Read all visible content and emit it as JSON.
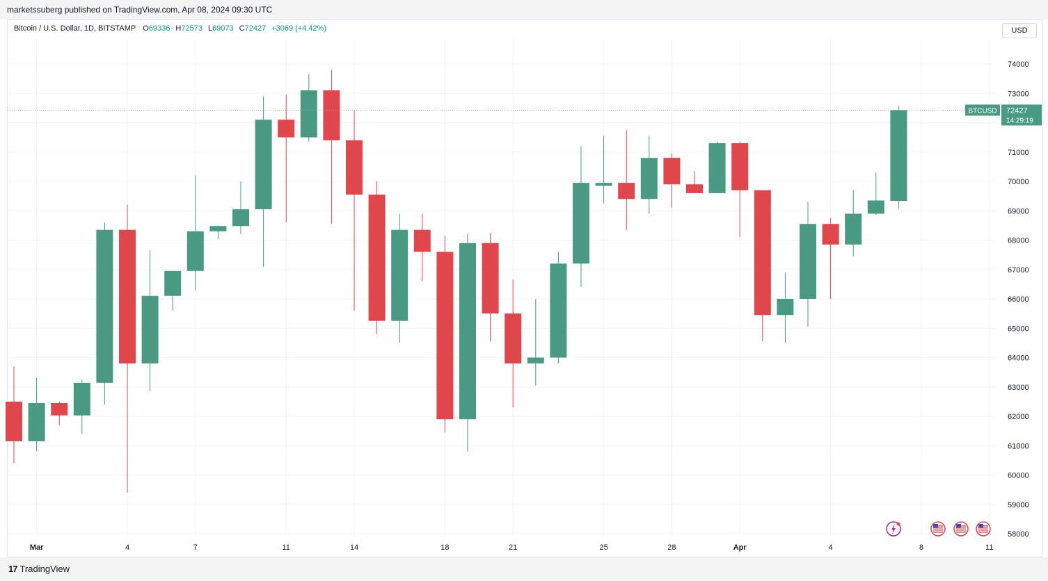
{
  "header": {
    "published_text": "marketssuberg published on TradingView.com, Apr 08, 2024 09:30 UTC"
  },
  "legend": {
    "symbol": "Bitcoin / U.S. Dollar, 1D, BITSTAMP",
    "o_label": "O",
    "o_value": "69336",
    "h_label": "H",
    "h_value": "72573",
    "l_label": "L",
    "l_value": "69073",
    "c_label": "C",
    "c_value": "72427",
    "change": "+3069 (+4.42%)"
  },
  "currency_button": "USD",
  "price_tag": {
    "symbol": "BTCUSD",
    "price": "72427",
    "countdown": "14:29:19"
  },
  "footer": {
    "logo_mark": "17",
    "logo_text": "TradingView"
  },
  "colors": {
    "up": "#4a9a83",
    "down": "#e0474c",
    "grid": "#f0f3fa",
    "axis_text": "#131722",
    "price_line": "#4a9a83"
  },
  "chart_data": {
    "type": "candlestick",
    "title": "Bitcoin / U.S. Dollar, 1D, BITSTAMP",
    "x_tick_labels": [
      "Mar",
      "4",
      "7",
      "11",
      "14",
      "18",
      "21",
      "25",
      "28",
      "Apr",
      "4",
      "8",
      "11"
    ],
    "y_ticks": [
      58000,
      59000,
      60000,
      61000,
      62000,
      63000,
      64000,
      65000,
      66000,
      67000,
      68000,
      69000,
      70000,
      71000,
      72000,
      73000,
      74000
    ],
    "y_tick_labels": [
      "58000",
      "59000",
      "60000",
      "61000",
      "62000",
      "63000",
      "64000",
      "65000",
      "66000",
      "67000",
      "68000",
      "69000",
      "70000",
      "71000",
      "72000",
      "73000",
      "74000"
    ],
    "ylim": [
      57600,
      75300
    ],
    "grid": true,
    "last_price": 72427,
    "candles": [
      {
        "date": "2024-02-29",
        "o": 62500,
        "h": 63700,
        "l": 60400,
        "c": 61150
      },
      {
        "date": "2024-03-01",
        "o": 61150,
        "h": 63300,
        "l": 60800,
        "c": 62450
      },
      {
        "date": "2024-03-02",
        "o": 62450,
        "h": 62500,
        "l": 61700,
        "c": 62030
      },
      {
        "date": "2024-03-03",
        "o": 62030,
        "h": 63250,
        "l": 61400,
        "c": 63140
      },
      {
        "date": "2024-03-04",
        "o": 63140,
        "h": 68600,
        "l": 62400,
        "c": 68350
      },
      {
        "date": "2024-03-05",
        "o": 68350,
        "h": 69200,
        "l": 59400,
        "c": 63800
      },
      {
        "date": "2024-03-06",
        "o": 63800,
        "h": 67650,
        "l": 62850,
        "c": 66100
      },
      {
        "date": "2024-03-07",
        "o": 66100,
        "h": 66950,
        "l": 65600,
        "c": 66950
      },
      {
        "date": "2024-03-08",
        "o": 66950,
        "h": 70200,
        "l": 66300,
        "c": 68300
      },
      {
        "date": "2024-03-09",
        "o": 68300,
        "h": 68500,
        "l": 68050,
        "c": 68480
      },
      {
        "date": "2024-03-10",
        "o": 68480,
        "h": 70000,
        "l": 68200,
        "c": 69050
      },
      {
        "date": "2024-03-11",
        "o": 69050,
        "h": 72900,
        "l": 67100,
        "c": 72100
      },
      {
        "date": "2024-03-12",
        "o": 72100,
        "h": 72950,
        "l": 68600,
        "c": 71500
      },
      {
        "date": "2024-03-13",
        "o": 71500,
        "h": 73650,
        "l": 71350,
        "c": 73100
      },
      {
        "date": "2024-03-14",
        "o": 73100,
        "h": 73800,
        "l": 68550,
        "c": 71400
      },
      {
        "date": "2024-03-15",
        "o": 71400,
        "h": 72400,
        "l": 65600,
        "c": 69550
      },
      {
        "date": "2024-03-16",
        "o": 69550,
        "h": 70000,
        "l": 64800,
        "c": 65250
      },
      {
        "date": "2024-03-17",
        "o": 65250,
        "h": 68900,
        "l": 64500,
        "c": 68350
      },
      {
        "date": "2024-03-18",
        "o": 68350,
        "h": 68900,
        "l": 66600,
        "c": 67600
      },
      {
        "date": "2024-03-19",
        "o": 67600,
        "h": 68150,
        "l": 61450,
        "c": 61900
      },
      {
        "date": "2024-03-20",
        "o": 61900,
        "h": 68200,
        "l": 60800,
        "c": 67900
      },
      {
        "date": "2024-03-21",
        "o": 67900,
        "h": 68250,
        "l": 64550,
        "c": 65500
      },
      {
        "date": "2024-03-22",
        "o": 65500,
        "h": 66650,
        "l": 62300,
        "c": 63800
      },
      {
        "date": "2024-03-23",
        "o": 63800,
        "h": 66000,
        "l": 63050,
        "c": 64000
      },
      {
        "date": "2024-03-24",
        "o": 64000,
        "h": 67600,
        "l": 63800,
        "c": 67200
      },
      {
        "date": "2024-03-25",
        "o": 67200,
        "h": 71200,
        "l": 66400,
        "c": 69950
      },
      {
        "date": "2024-03-26",
        "o": 69850,
        "h": 71550,
        "l": 69250,
        "c": 69950
      },
      {
        "date": "2024-03-27",
        "o": 69950,
        "h": 71750,
        "l": 68350,
        "c": 69400
      },
      {
        "date": "2024-03-28",
        "o": 69400,
        "h": 71550,
        "l": 68900,
        "c": 70800
      },
      {
        "date": "2024-03-29",
        "o": 70800,
        "h": 70950,
        "l": 69100,
        "c": 69900
      },
      {
        "date": "2024-03-30",
        "o": 69900,
        "h": 70350,
        "l": 69600,
        "c": 69600
      },
      {
        "date": "2024-03-31",
        "o": 69600,
        "h": 71350,
        "l": 69600,
        "c": 71300
      },
      {
        "date": "2024-04-01",
        "o": 71300,
        "h": 71350,
        "l": 68100,
        "c": 69700
      },
      {
        "date": "2024-04-02",
        "o": 69700,
        "h": 69700,
        "l": 64550,
        "c": 65450
      },
      {
        "date": "2024-04-03",
        "o": 65450,
        "h": 66900,
        "l": 64500,
        "c": 66000
      },
      {
        "date": "2024-04-04",
        "o": 66000,
        "h": 69300,
        "l": 65050,
        "c": 68550
      },
      {
        "date": "2024-04-05",
        "o": 68550,
        "h": 68750,
        "l": 66000,
        "c": 67850
      },
      {
        "date": "2024-04-06",
        "o": 67850,
        "h": 69700,
        "l": 67450,
        "c": 68900
      },
      {
        "date": "2024-04-07",
        "o": 68900,
        "h": 70300,
        "l": 68850,
        "c": 69350
      },
      {
        "date": "2024-04-08",
        "o": 69336,
        "h": 72573,
        "l": 69073,
        "c": 72427
      }
    ]
  }
}
